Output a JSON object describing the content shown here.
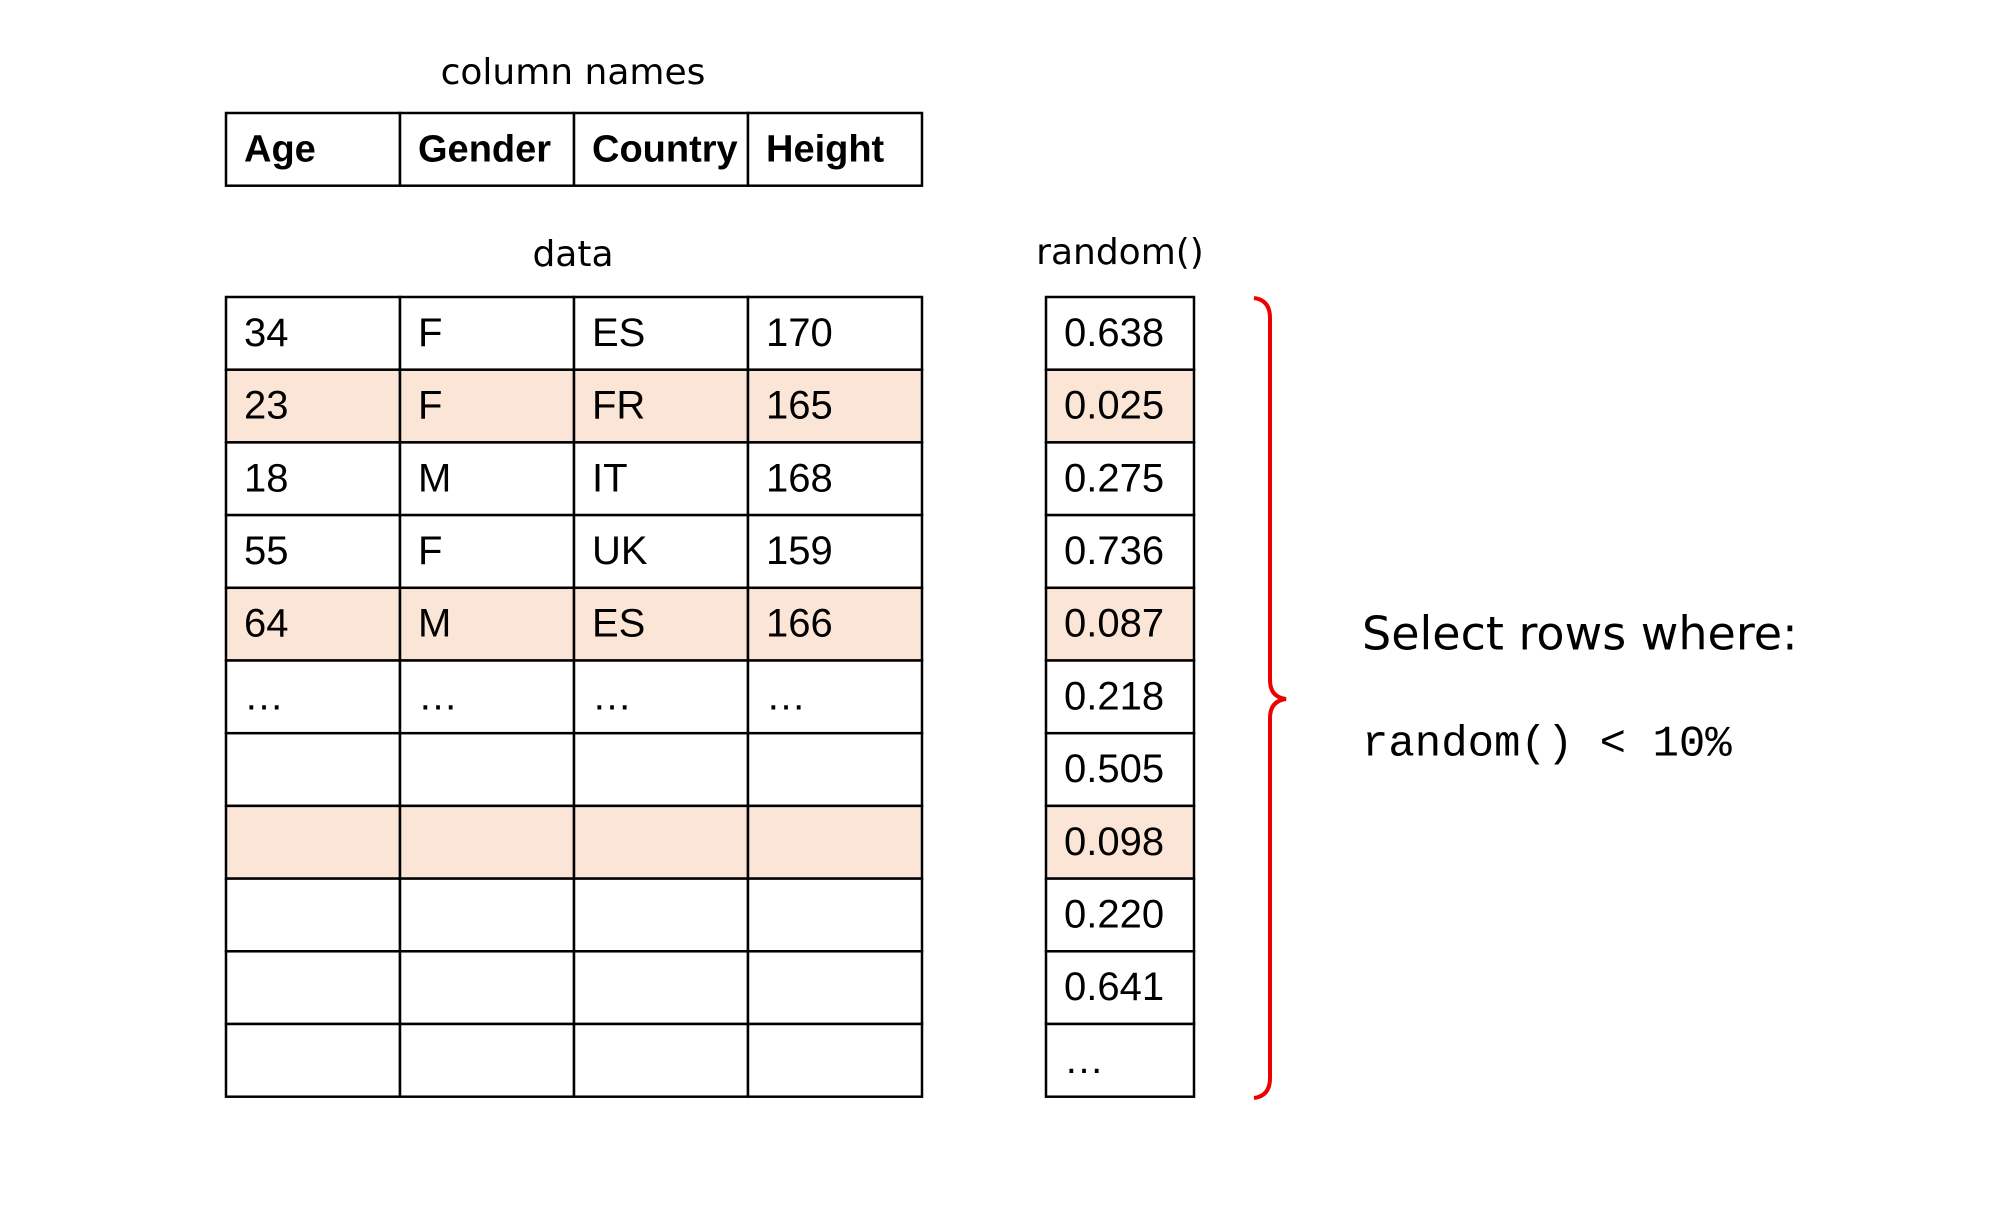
{
  "column_names_label": "column names",
  "columns": [
    "Age",
    "Gender",
    "Country",
    "Height"
  ],
  "data_label": "data",
  "rows": [
    [
      "34",
      "F",
      "ES",
      "170"
    ],
    [
      "23",
      "F",
      "FR",
      "165"
    ],
    [
      "18",
      "M",
      "IT",
      "168"
    ],
    [
      "55",
      "F",
      "UK",
      "159"
    ],
    [
      "64",
      "M",
      "ES",
      "166"
    ],
    [
      "…",
      "…",
      "…",
      "…"
    ]
  ],
  "random_label": "random()",
  "random_values": [
    "0.638",
    "0.025",
    "0.275",
    "0.736",
    "0.087",
    "0.218",
    "0.505",
    "0.098",
    "0.220",
    "0.641",
    "…"
  ],
  "highlighted_rows": [
    1,
    4,
    7
  ],
  "highlight_color": "#fbe5d6",
  "rule_title": "Select rows where:",
  "rule_expression": "random() < 10%"
}
